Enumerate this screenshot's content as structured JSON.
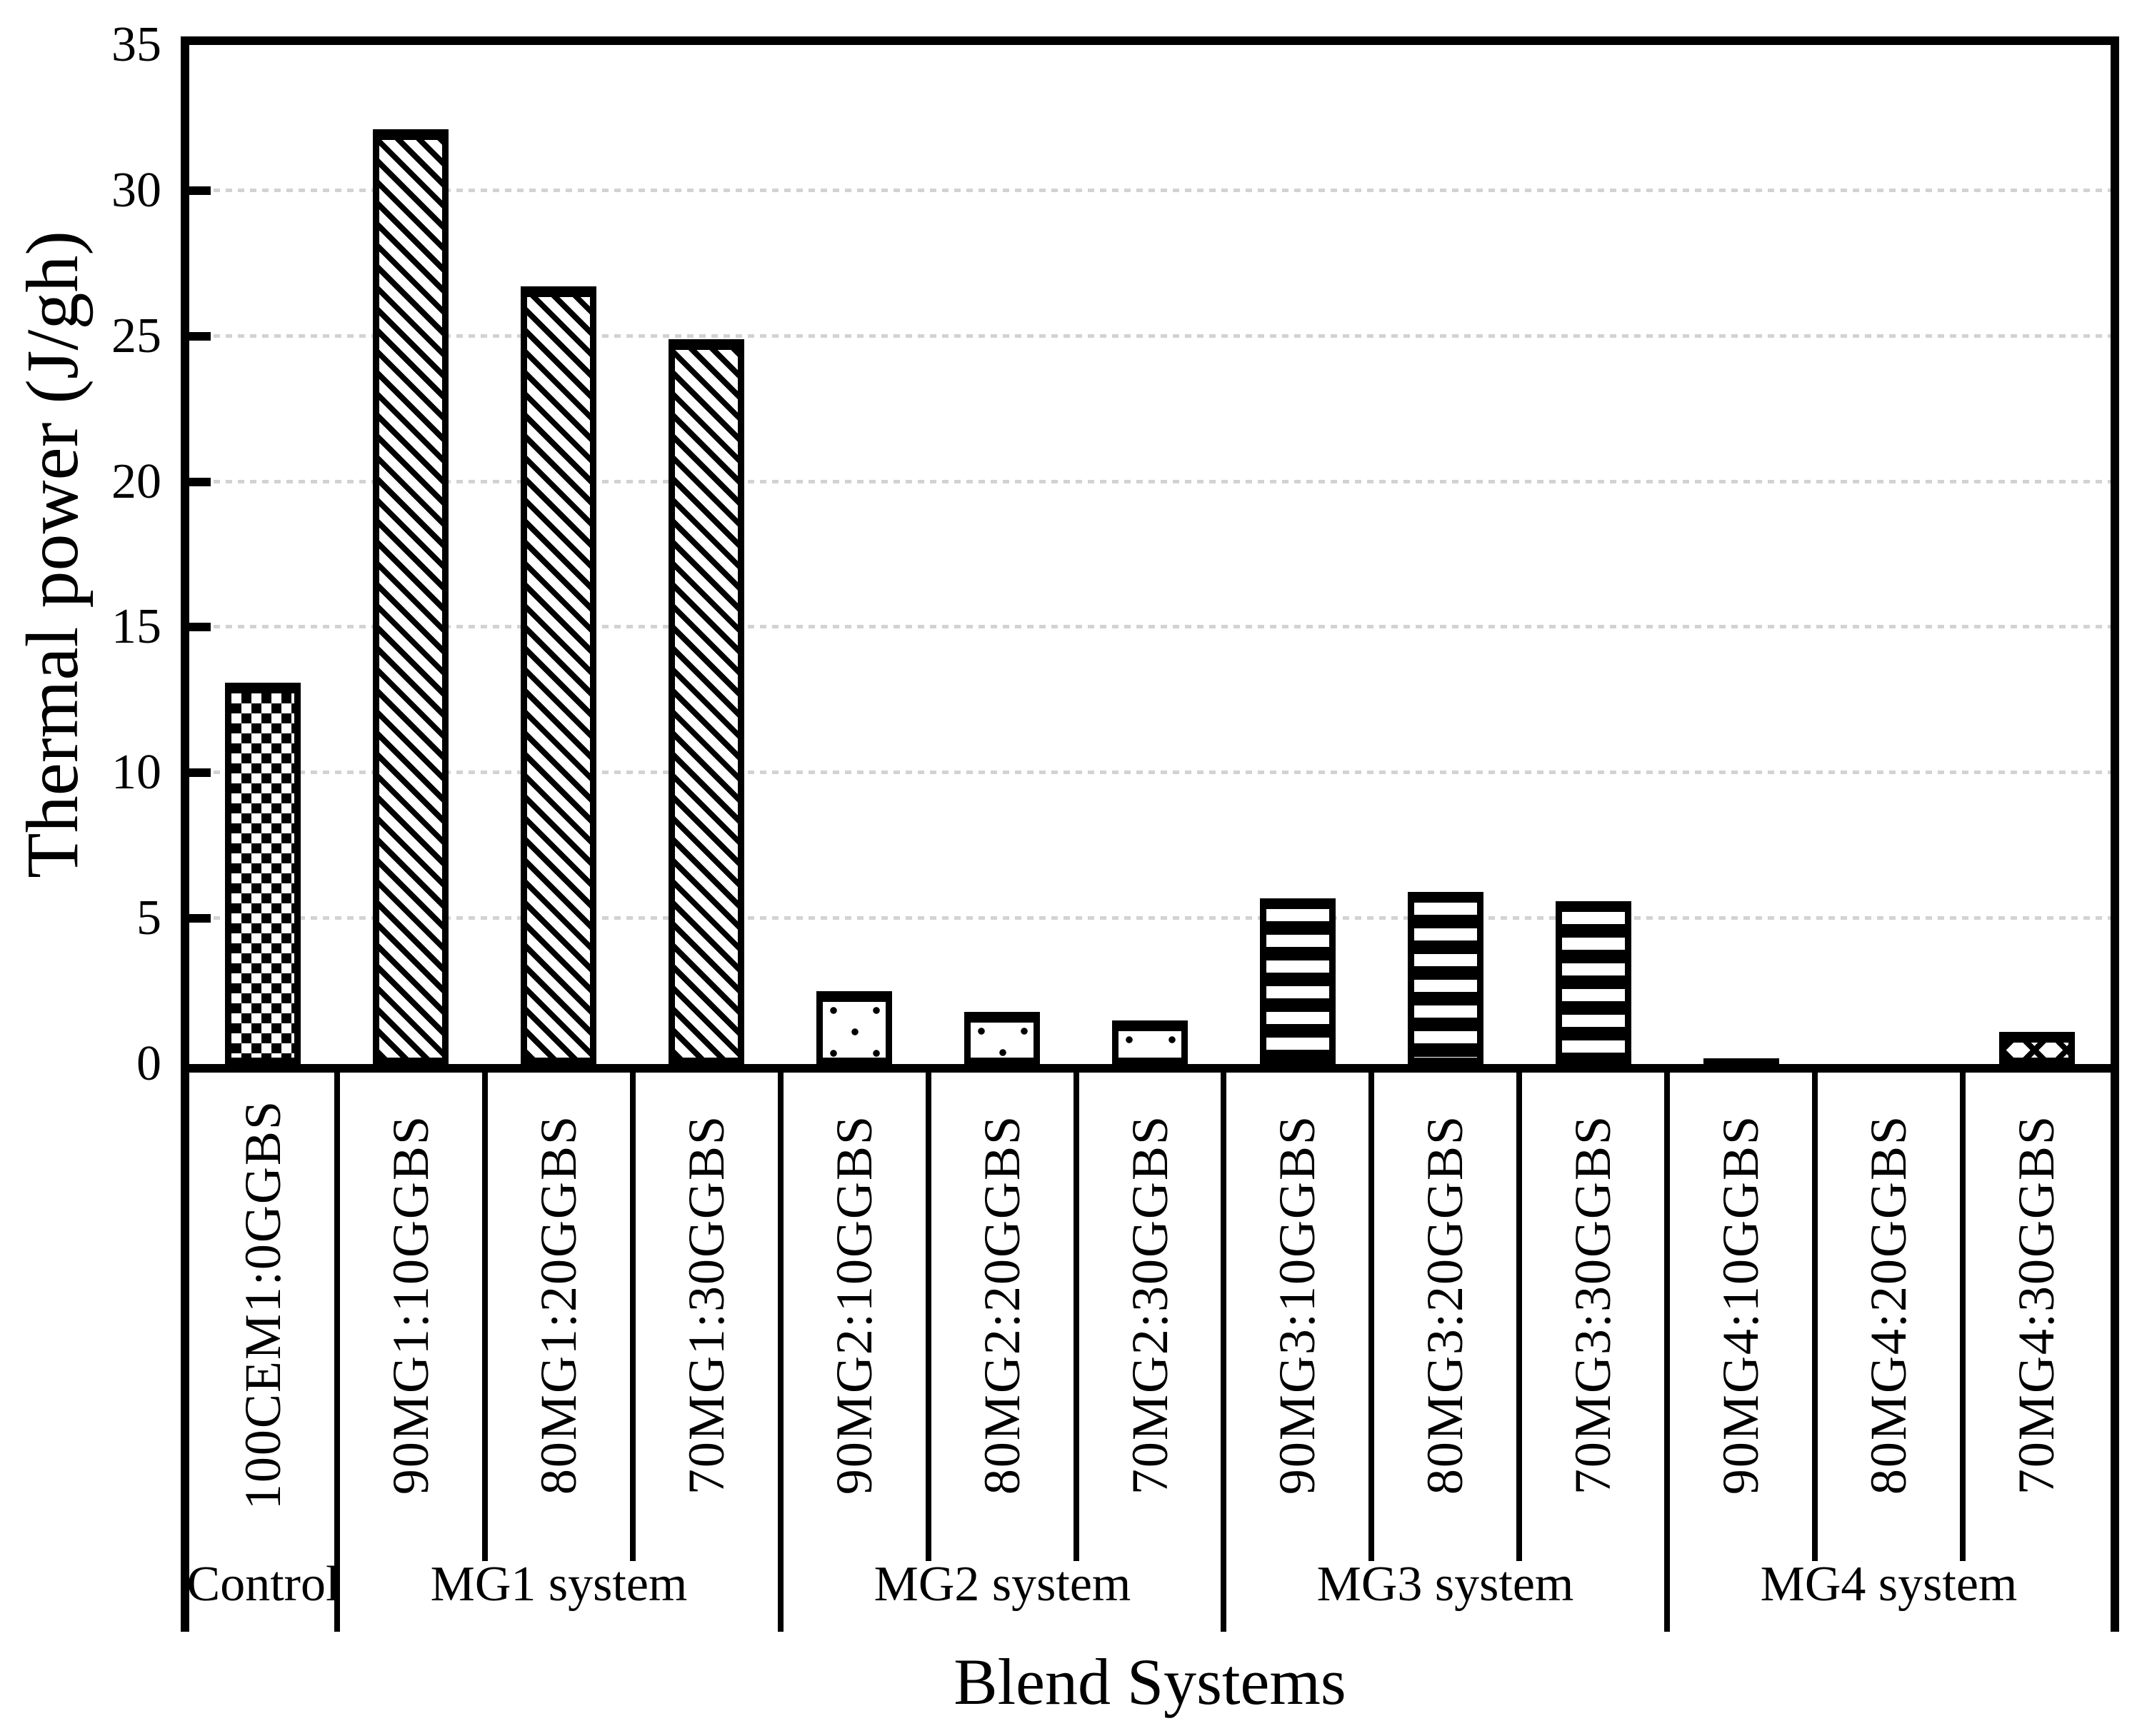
{
  "chart_data": {
    "type": "bar",
    "title": "",
    "xlabel": "Blend Systems",
    "ylabel": "Thermal power (J/gh)",
    "ylim": [
      0,
      35
    ],
    "yticks": [
      0,
      5,
      10,
      15,
      20,
      25,
      30,
      35
    ],
    "grid": "horizontal-dotted",
    "legend": "none",
    "categories": [
      "100CEM1:0GGBS",
      "90MG1:10GGBS",
      "80MG1:20GGBS",
      "70MG1:30GGBS",
      "90MG2:10GGBS",
      "80MG2:20GGBS",
      "70MG2:30GGBS",
      "90MG3:10GGBS",
      "80MG3:20GGBS",
      "70MG3:30GGBS",
      "90MG4:10GGBS",
      "80MG4:20GGBS",
      "70MG4:30GGBS"
    ],
    "values": [
      13.1,
      32.1,
      26.7,
      24.9,
      2.5,
      1.8,
      1.5,
      5.7,
      5.9,
      5.6,
      0.2,
      0,
      1.1
    ],
    "patterns": [
      "checker",
      "diagonal",
      "diagonal",
      "diagonal",
      "dots",
      "dots",
      "dots",
      "hlines",
      "hlines",
      "hlines",
      "solid",
      "none",
      "crosshatch"
    ],
    "groups": [
      {
        "label": "Control",
        "span": 1
      },
      {
        "label": "MG1 system",
        "span": 3
      },
      {
        "label": "MG2 system",
        "span": 3
      },
      {
        "label": "MG3 system",
        "span": 3
      },
      {
        "label": "MG4 system",
        "span": 3
      }
    ],
    "colors": {
      "bar_fill": "#ffffff",
      "bar_stroke": "#000000",
      "gridline": "#d2d2d2",
      "text": "#000000",
      "background": "#ffffff"
    }
  }
}
